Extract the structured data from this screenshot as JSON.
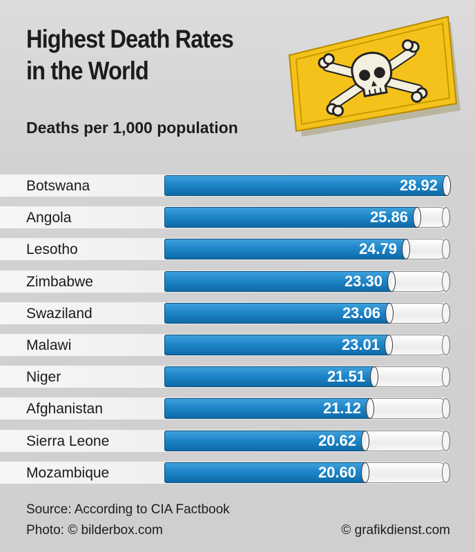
{
  "chart_data": {
    "type": "bar",
    "orientation": "horizontal",
    "title_lines": [
      "Highest Death Rates",
      "in the World"
    ],
    "subtitle": "Deaths per 1,000 population",
    "categories": [
      "Botswana",
      "Angola",
      "Lesotho",
      "Zimbabwe",
      "Swaziland",
      "Malawi",
      "Niger",
      "Afghanistan",
      "Sierra Leone",
      "Mozambique"
    ],
    "values": [
      28.92,
      25.86,
      24.79,
      23.3,
      23.06,
      23.01,
      21.51,
      21.12,
      20.62,
      20.6
    ],
    "value_labels": [
      "28.92",
      "25.86",
      "24.79",
      "23.30",
      "23.06",
      "23.01",
      "21.51",
      "21.12",
      "20.62",
      "20.60"
    ],
    "xlim": [
      0,
      28.92
    ],
    "bar_color": "#1e86c9",
    "track_color": "#f4f4f4",
    "grid": false,
    "legend": "none"
  },
  "footer": {
    "source": "Source: According to CIA Factbook",
    "photo": "Photo: © bilderbox.com",
    "copyright": "© grafikdienst.com"
  },
  "illustration": {
    "icon": "skull-crossbones-icon",
    "sign_color": "#f4c21a"
  }
}
